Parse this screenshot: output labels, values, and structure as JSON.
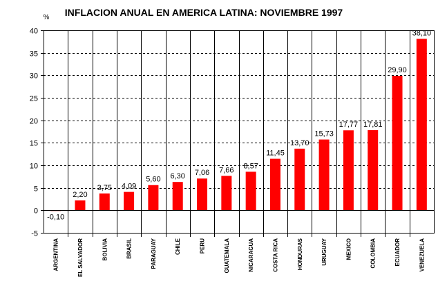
{
  "chart_data": {
    "type": "bar",
    "title": "INFLACION ANUAL EN AMERICA LATINA: NOVIEMBRE 1997",
    "ylabel": "%",
    "xlabel": "",
    "ylim": [
      -5,
      40
    ],
    "yticks": [
      -5,
      0,
      5,
      10,
      15,
      20,
      25,
      30,
      35,
      40
    ],
    "grid": "horizontal-dashed",
    "bar_color": "#ff0000",
    "categories": [
      "ARGENTINA",
      "EL SALVADOR",
      "BOLIVIA",
      "BRASIL",
      "PARAGUAY",
      "CHILE",
      "PERU",
      "GUATEMALA",
      "NICARAGUA",
      "COSTA RICA",
      "HONDURAS",
      "URUGUAY",
      "MEXICO",
      "COLOMBIA",
      "ECUADOR",
      "VENEZUELA"
    ],
    "values": [
      -0.1,
      2.2,
      3.75,
      4.09,
      5.6,
      6.3,
      7.06,
      7.66,
      8.57,
      11.45,
      13.7,
      15.73,
      17.77,
      17.81,
      29.9,
      38.1
    ],
    "data_labels": [
      "-0,10",
      "2,20",
      "3,75",
      "4,09",
      "5,60",
      "6,30",
      "7,06",
      "7,66",
      "8,57",
      "11,45",
      "13,70",
      "15,73",
      "17,77",
      "17,81",
      "29,90",
      "38,10"
    ]
  }
}
